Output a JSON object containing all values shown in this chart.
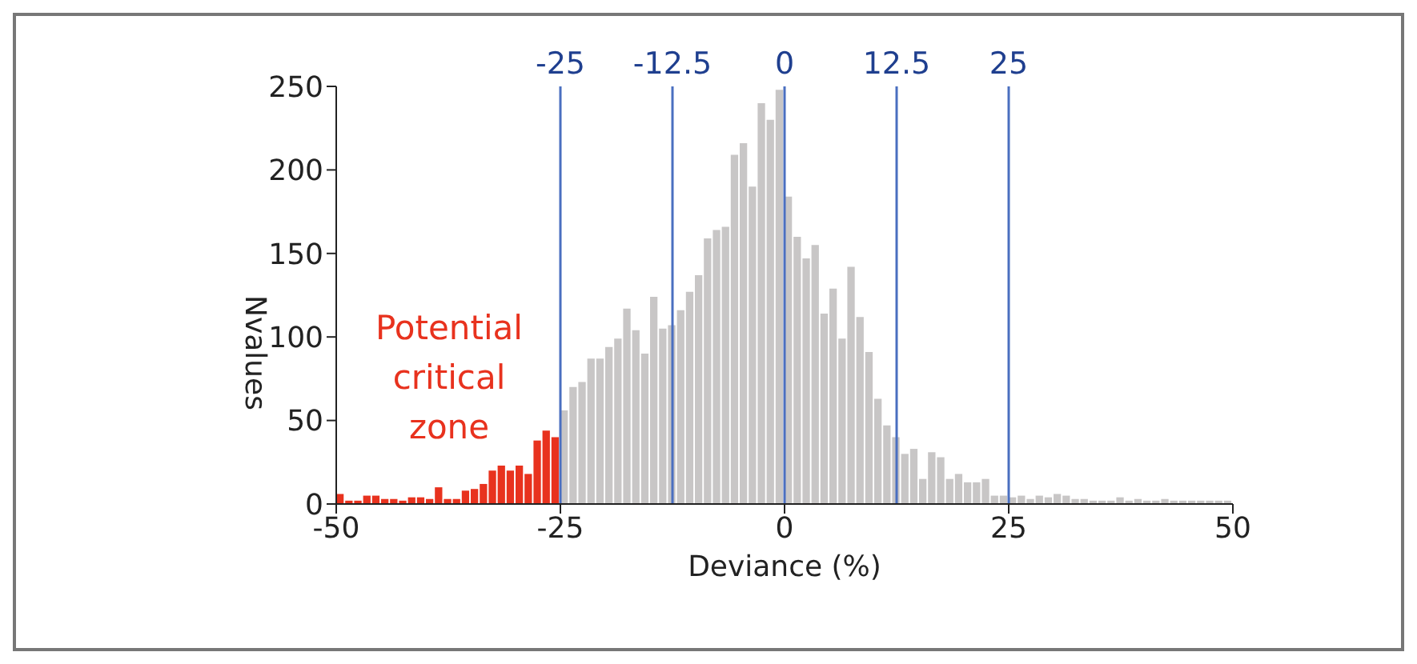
{
  "chart_data": {
    "type": "histogram",
    "xlabel": "Deviance (%)",
    "ylabel": "Nvalues",
    "bins": [
      -50,
      -49,
      -48,
      -47,
      -46,
      -45,
      -44,
      -43,
      -42,
      -41,
      -40,
      -39,
      -38,
      -37,
      -36,
      -35,
      -34,
      -33,
      -32,
      -31,
      -30,
      -29,
      -28,
      -27,
      -26,
      -25,
      -24,
      -23,
      -22,
      -21,
      -20,
      -19,
      -18,
      -17,
      -16,
      -15,
      -14,
      -13,
      -12,
      -11,
      -10,
      -9,
      -8,
      -7,
      -6,
      -5,
      -4,
      -3,
      -2,
      -1,
      0,
      1,
      2,
      3,
      4,
      5,
      6,
      7,
      8,
      9,
      10,
      11,
      12,
      13,
      14,
      15,
      16,
      17,
      18,
      19,
      20,
      21,
      22,
      23,
      24,
      25,
      26,
      27,
      28,
      29,
      30,
      31,
      32,
      33,
      34,
      35,
      36,
      37,
      38,
      39,
      40,
      41,
      42,
      43,
      44,
      45,
      46,
      47,
      48,
      49,
      50
    ],
    "values": [
      6,
      2,
      2,
      5,
      5,
      3,
      3,
      2,
      4,
      4,
      3,
      10,
      3,
      3,
      8,
      9,
      12,
      20,
      23,
      20,
      23,
      18,
      38,
      44,
      40,
      56,
      70,
      73,
      87,
      87,
      94,
      99,
      117,
      104,
      90,
      124,
      105,
      107,
      116,
      127,
      137,
      159,
      164,
      166,
      209,
      216,
      190,
      240,
      230,
      248,
      184,
      160,
      147,
      155,
      114,
      129,
      99,
      142,
      112,
      91,
      63,
      47,
      40,
      30,
      33,
      15,
      31,
      28,
      15,
      18,
      13,
      13,
      15,
      5,
      5,
      4,
      5,
      3,
      5,
      4,
      6,
      5,
      3,
      3,
      2,
      2,
      2,
      4,
      2,
      3,
      2,
      2,
      3,
      2,
      2,
      2,
      2,
      2,
      2,
      2
    ],
    "colors": [
      "#e8321e",
      "#e8321e",
      "#e8321e",
      "#e8321e",
      "#e8321e",
      "#e8321e",
      "#e8321e",
      "#e8321e",
      "#e8321e",
      "#e8321e",
      "#e8321e",
      "#e8321e",
      "#e8321e",
      "#e8321e",
      "#e8321e",
      "#e8321e",
      "#e8321e",
      "#e8321e",
      "#e8321e",
      "#e8321e",
      "#e8321e",
      "#e8321e",
      "#e8321e",
      "#e8321e",
      "#e8321e",
      "#c8c6c6",
      "#c8c6c6",
      "#c8c6c6",
      "#c8c6c6",
      "#c8c6c6",
      "#c8c6c6",
      "#c8c6c6",
      "#c8c6c6",
      "#c8c6c6",
      "#c8c6c6",
      "#c8c6c6",
      "#c8c6c6",
      "#c8c6c6",
      "#c8c6c6",
      "#c8c6c6",
      "#c8c6c6",
      "#c8c6c6",
      "#c8c6c6",
      "#c8c6c6",
      "#c8c6c6",
      "#c8c6c6",
      "#c8c6c6",
      "#c8c6c6",
      "#c8c6c6",
      "#c8c6c6",
      "#c8c6c6",
      "#c8c6c6",
      "#c8c6c6",
      "#c8c6c6",
      "#c8c6c6",
      "#c8c6c6",
      "#c8c6c6",
      "#c8c6c6",
      "#c8c6c6",
      "#c8c6c6",
      "#c8c6c6",
      "#c8c6c6",
      "#c8c6c6",
      "#c8c6c6",
      "#c8c6c6",
      "#c8c6c6",
      "#c8c6c6",
      "#c8c6c6",
      "#c8c6c6",
      "#c8c6c6",
      "#c8c6c6",
      "#c8c6c6",
      "#c8c6c6",
      "#c8c6c6",
      "#c8c6c6",
      "#c8c6c6",
      "#c8c6c6",
      "#c8c6c6",
      "#c8c6c6",
      "#c8c6c6",
      "#c8c6c6",
      "#c8c6c6",
      "#c8c6c6",
      "#c8c6c6",
      "#c8c6c6",
      "#c8c6c6",
      "#c8c6c6",
      "#c8c6c6",
      "#c8c6c6",
      "#c8c6c6",
      "#c8c6c6",
      "#c8c6c6",
      "#c8c6c6",
      "#c8c6c6",
      "#c8c6c6",
      "#c8c6c6",
      "#c8c6c6",
      "#c8c6c6",
      "#c8c6c6",
      "#c8c6c6"
    ],
    "xlim": [
      -50,
      50
    ],
    "xticks": [
      -50,
      -25,
      0,
      25,
      50
    ],
    "ylim": [
      0,
      250
    ],
    "yticks": [
      0,
      50,
      100,
      150,
      200,
      250
    ],
    "ref_lines": [
      {
        "axis": "x",
        "value": -25,
        "label": "-25",
        "color": "#4a6fc0"
      },
      {
        "axis": "x",
        "value": -12.5,
        "label": "-12.5",
        "color": "#4a6fc0"
      },
      {
        "axis": "x",
        "value": 0,
        "label": "0",
        "color": "#4a6fc0"
      },
      {
        "axis": "x",
        "value": 12.5,
        "label": "12.5",
        "color": "#4a6fc0"
      },
      {
        "axis": "x",
        "value": 25,
        "label": "25",
        "color": "#4a6fc0"
      }
    ],
    "annotations": [
      "Potential critical zone"
    ],
    "grid": false,
    "legend": false
  }
}
